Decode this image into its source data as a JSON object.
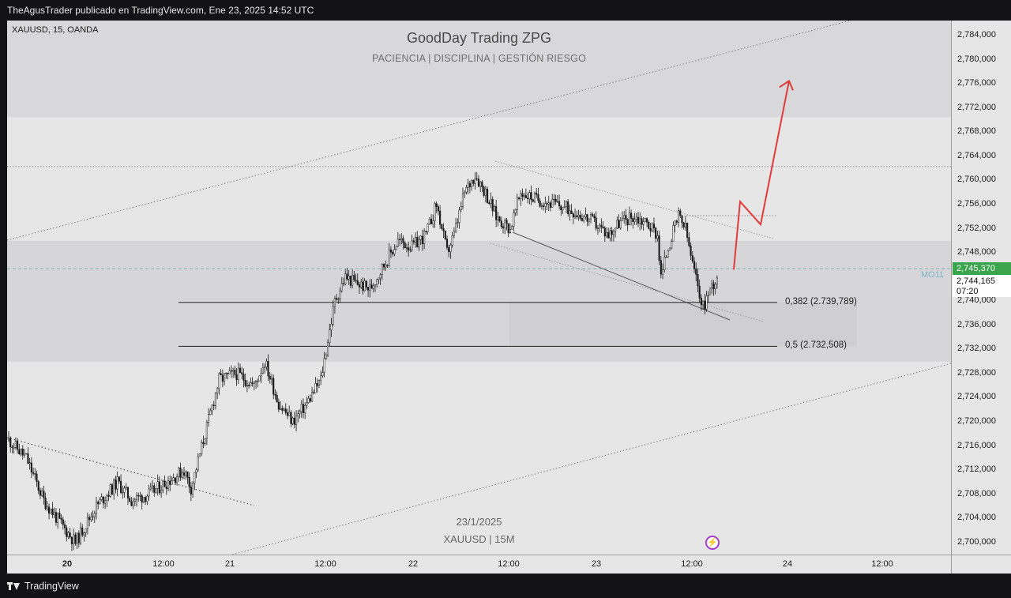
{
  "header": {
    "publisher_text": "TheAgusTrader publicado en TradingView.com, Ene 23, 2025 14:52 UTC"
  },
  "chart_data": {
    "type": "candlestick",
    "symbol_label": "XAUUSD, 15, OANDA",
    "watermark": {
      "title": "GoodDay Trading ZPG",
      "subtitle": "PACIENCIA  |  DISCIPLINA  |  GESTIÓN RIESGO",
      "date": "23/1/2025",
      "symbol": "XAUUSD | 15M"
    },
    "y_axis": {
      "range": [
        2.698,
        2.7865
      ],
      "ticks": [
        "2,784,000",
        "2,780,000",
        "2,776,000",
        "2,772,000",
        "2,768,000",
        "2,764,000",
        "2,760,000",
        "2,756,000",
        "2,752,000",
        "2,748,000",
        "2,744,000",
        "2,740,000",
        "2,736,000",
        "2,732,000",
        "2,728,000",
        "2,724,000",
        "2,720,000",
        "2,716,000",
        "2,712,000",
        "2,708,000",
        "2,704,000",
        "2,700,000"
      ],
      "tick_values": [
        2.784,
        2.78,
        2.776,
        2.772,
        2.768,
        2.764,
        2.76,
        2.756,
        2.752,
        2.748,
        2.744,
        2.74,
        2.736,
        2.732,
        2.728,
        2.724,
        2.72,
        2.716,
        2.712,
        2.708,
        2.704,
        2.7
      ]
    },
    "x_axis": {
      "ticks": [
        {
          "label": "20",
          "bold": true
        },
        {
          "label": "12:00",
          "bold": false
        },
        {
          "label": "21",
          "bold": false
        },
        {
          "label": "12:00",
          "bold": false
        },
        {
          "label": "22",
          "bold": false
        },
        {
          "label": "12:00",
          "bold": false
        },
        {
          "label": "23",
          "bold": false
        },
        {
          "label": "12:00",
          "bold": false
        },
        {
          "label": "24",
          "bold": false
        },
        {
          "label": "12:00",
          "bold": false
        }
      ]
    },
    "current_price": {
      "label": "2,745,370",
      "value": 2.74537,
      "color": "#3aa54c"
    },
    "last_tag": {
      "price": "2,744,165",
      "countdown": "07:20"
    },
    "indicator_label": "MO11",
    "fib_levels": [
      {
        "label": "0,382 (2.739,789)",
        "value": 2.739789
      },
      {
        "label": "0,5 (2.732,508)",
        "value": 2.732508
      }
    ],
    "zones": [
      {
        "from": 2.7705,
        "to": 2.7865,
        "color": "#d8d8da"
      },
      {
        "from": 2.73,
        "to": 2.75,
        "color": "#d6d6d8"
      }
    ],
    "resistance_line": 2.7623,
    "projection": {
      "color": "#e23b3b",
      "points": [
        [
          2.7452
        ],
        [
          2.7565
        ],
        [
          2.7527
        ],
        [
          2.7765
        ]
      ]
    },
    "series": [
      {
        "name": "candles",
        "waypoints": [
          [
            0,
            2.717
          ],
          [
            10,
            2.714
          ],
          [
            20,
            2.707
          ],
          [
            30,
            2.703
          ],
          [
            38,
            2.7
          ],
          [
            50,
            2.706
          ],
          [
            62,
            2.71
          ],
          [
            70,
            2.707
          ],
          [
            80,
            2.708
          ],
          [
            90,
            2.71
          ],
          [
            100,
            2.712
          ],
          [
            104,
            2.709
          ],
          [
            112,
            2.718
          ],
          [
            120,
            2.727
          ],
          [
            130,
            2.728
          ],
          [
            140,
            2.726
          ],
          [
            146,
            2.73
          ],
          [
            154,
            2.723
          ],
          [
            162,
            2.72
          ],
          [
            170,
            2.723
          ],
          [
            178,
            2.727
          ],
          [
            186,
            2.74
          ],
          [
            192,
            2.744
          ],
          [
            198,
            2.743
          ],
          [
            206,
            2.742
          ],
          [
            214,
            2.746
          ],
          [
            222,
            2.75
          ],
          [
            230,
            2.749
          ],
          [
            238,
            2.751
          ],
          [
            244,
            2.756
          ],
          [
            250,
            2.748
          ],
          [
            254,
            2.751
          ],
          [
            260,
            2.758
          ],
          [
            266,
            2.761
          ],
          [
            272,
            2.758
          ],
          [
            278,
            2.754
          ],
          [
            286,
            2.752
          ],
          [
            292,
            2.758
          ],
          [
            300,
            2.757
          ],
          [
            312,
            2.756
          ],
          [
            322,
            2.755
          ],
          [
            334,
            2.753
          ],
          [
            342,
            2.751
          ],
          [
            348,
            2.753
          ],
          [
            356,
            2.754
          ],
          [
            364,
            2.753
          ],
          [
            370,
            2.751
          ],
          [
            372,
            2.744
          ],
          [
            376,
            2.749
          ],
          [
            382,
            2.754
          ],
          [
            386,
            2.752
          ],
          [
            390,
            2.746
          ],
          [
            396,
            2.739
          ],
          [
            400,
            2.742
          ],
          [
            404,
            2.744
          ]
        ]
      }
    ]
  }
}
